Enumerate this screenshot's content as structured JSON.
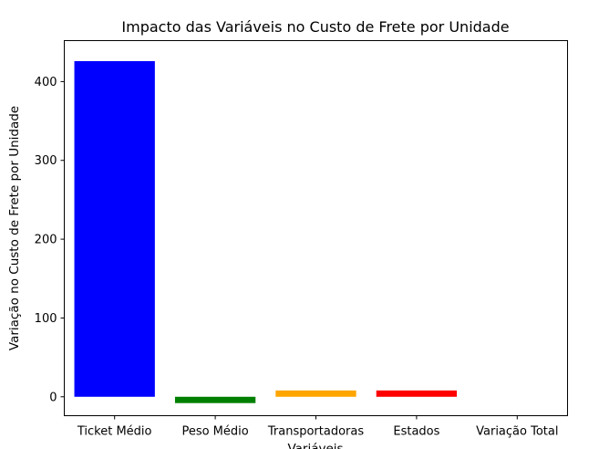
{
  "chart_data": {
    "type": "bar",
    "title": "Impacto das Variáveis no Custo de Frete por Unidade",
    "xlabel": "Variáveis",
    "ylabel": "Variação no Custo de Frete por Unidade",
    "categories": [
      "Ticket Médio",
      "Peso Médio",
      "Transportadoras",
      "Estados",
      "Variação Total"
    ],
    "values": [
      426,
      -8,
      8,
      8,
      0
    ],
    "colors": [
      "#0000ff",
      "#008000",
      "#ffa500",
      "#ff0000",
      "#800080"
    ],
    "yticks": [
      0,
      100,
      200,
      300,
      400
    ],
    "ylim": [
      -24,
      452
    ],
    "grid": false,
    "legend": "none"
  }
}
